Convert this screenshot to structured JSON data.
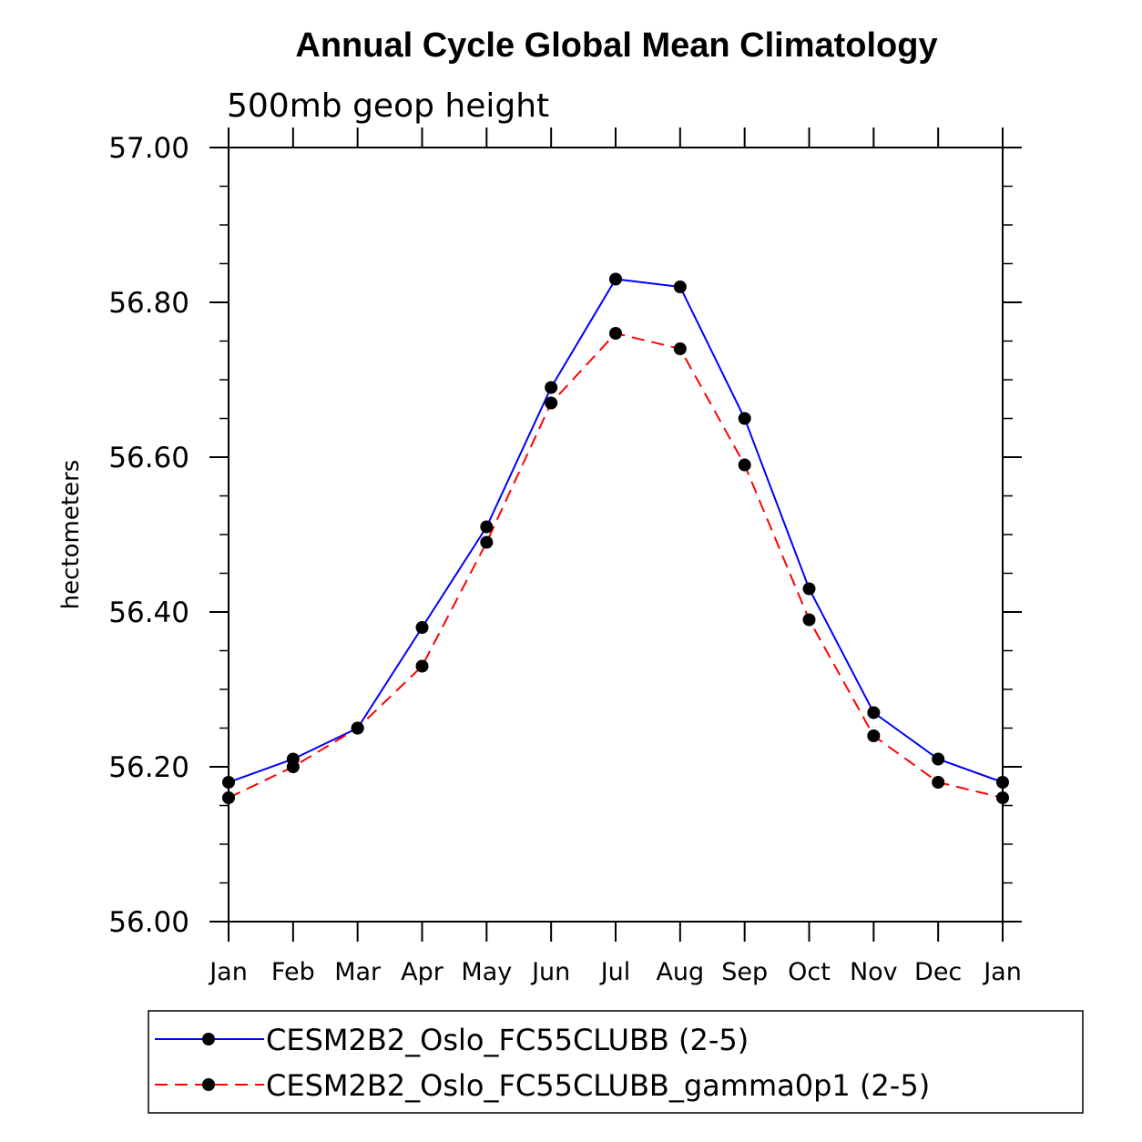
{
  "chart_data": {
    "type": "line",
    "title": "Annual Cycle Global Mean Climatology",
    "subtitle": "500mb geop height",
    "xlabel": "",
    "ylabel": "hectometers",
    "categories": [
      "Jan",
      "Feb",
      "Mar",
      "Apr",
      "May",
      "Jun",
      "Jul",
      "Aug",
      "Sep",
      "Oct",
      "Nov",
      "Dec",
      "Jan"
    ],
    "ylim": [
      56.0,
      57.0
    ],
    "yticks": [
      "56.00",
      "56.20",
      "56.40",
      "56.60",
      "56.80",
      "57.00"
    ],
    "ytick_values": [
      56.0,
      56.2,
      56.4,
      56.6,
      56.8,
      57.0
    ],
    "grid": false,
    "legend_placement": "bottom",
    "series": [
      {
        "name": "CESM2B2_Oslo_FC55CLUBB (2-5)",
        "color": "#0000ff",
        "dash": "solid",
        "values": [
          56.18,
          56.21,
          56.25,
          56.38,
          56.51,
          56.69,
          56.83,
          56.82,
          56.65,
          56.43,
          56.27,
          56.21,
          56.18
        ]
      },
      {
        "name": "CESM2B2_Oslo_FC55CLUBB_gamma0p1 (2-5)",
        "color": "#ff0000",
        "dash": "dashed",
        "values": [
          56.16,
          56.2,
          56.25,
          56.33,
          56.49,
          56.67,
          56.76,
          56.74,
          56.59,
          56.39,
          56.24,
          56.18,
          56.16
        ]
      }
    ]
  }
}
